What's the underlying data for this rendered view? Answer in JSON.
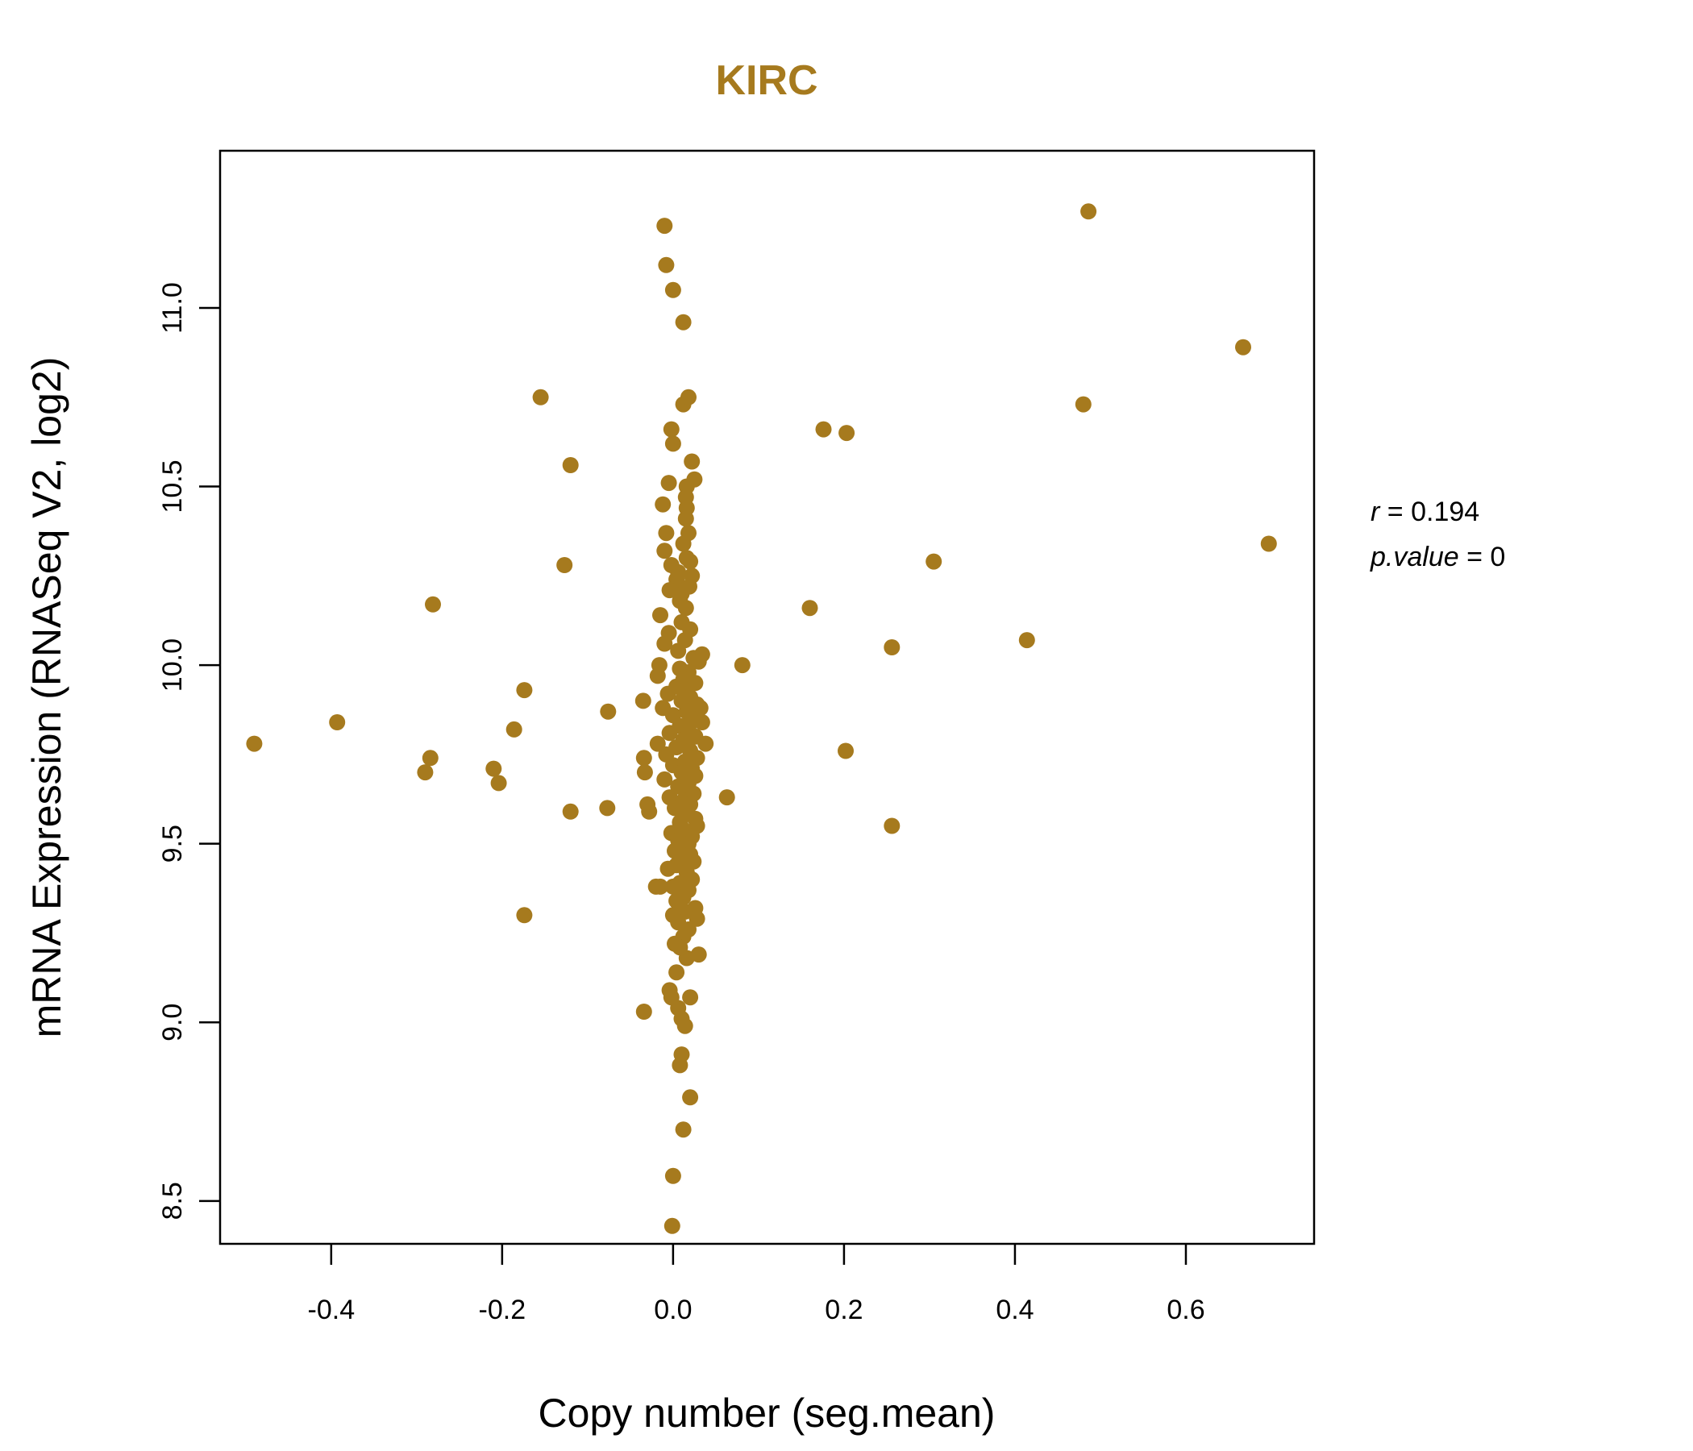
{
  "chart_data": {
    "type": "scatter",
    "title": "KIRC",
    "xlabel": "Copy number (seg.mean)",
    "ylabel": "mRNA Expression (RNASeq V2, log2)",
    "xlim": [
      -0.53,
      0.75
    ],
    "ylim": [
      8.38,
      11.44
    ],
    "x_ticks": [
      -0.4,
      -0.2,
      0.0,
      0.2,
      0.4,
      0.6
    ],
    "x_tick_labels": [
      "-0.4",
      "-0.2",
      "0.0",
      "0.2",
      "0.4",
      "0.6"
    ],
    "y_ticks": [
      8.5,
      9.0,
      9.5,
      10.0,
      10.5,
      11.0
    ],
    "y_tick_labels": [
      "8.5",
      "9.0",
      "9.5",
      "10.0",
      "10.5",
      "11.0"
    ],
    "point_color": "#A67A1E",
    "stats": {
      "r_label": "r",
      "r_value": "0.194",
      "p_label": "p.value",
      "p_value": "0"
    },
    "points": [
      [
        -0.49,
        9.78
      ],
      [
        -0.393,
        9.84
      ],
      [
        -0.29,
        9.7
      ],
      [
        -0.284,
        9.74
      ],
      [
        -0.281,
        10.17
      ],
      [
        -0.21,
        9.71
      ],
      [
        -0.204,
        9.67
      ],
      [
        -0.186,
        9.82
      ],
      [
        -0.174,
        9.93
      ],
      [
        -0.174,
        9.3
      ],
      [
        -0.155,
        10.75
      ],
      [
        -0.127,
        10.28
      ],
      [
        -0.12,
        10.56
      ],
      [
        -0.12,
        9.59
      ],
      [
        -0.076,
        9.87
      ],
      [
        -0.077,
        9.6
      ],
      [
        -0.035,
        9.9
      ],
      [
        -0.034,
        9.74
      ],
      [
        -0.033,
        9.7
      ],
      [
        -0.03,
        9.61
      ],
      [
        -0.028,
        9.59
      ],
      [
        -0.034,
        9.03
      ],
      [
        -0.02,
        9.38
      ],
      [
        -0.015,
        9.38
      ],
      [
        -0.018,
        9.78
      ],
      [
        -0.012,
        10.45
      ],
      [
        -0.01,
        10.32
      ],
      [
        -0.008,
        10.37
      ],
      [
        -0.01,
        11.23
      ],
      [
        -0.008,
        11.12
      ],
      [
        0.0,
        11.05
      ],
      [
        0.012,
        10.96
      ],
      [
        0.012,
        10.73
      ],
      [
        0.018,
        10.75
      ],
      [
        -0.002,
        10.66
      ],
      [
        0.0,
        10.62
      ],
      [
        0.022,
        10.57
      ],
      [
        -0.005,
        10.51
      ],
      [
        0.025,
        10.52
      ],
      [
        0.016,
        10.5
      ],
      [
        0.015,
        10.47
      ],
      [
        0.016,
        10.44
      ],
      [
        0.015,
        10.41
      ],
      [
        0.018,
        10.37
      ],
      [
        0.012,
        10.34
      ],
      [
        0.016,
        10.3
      ],
      [
        0.02,
        10.29
      ],
      [
        0.006,
        10.26
      ],
      [
        0.022,
        10.25
      ],
      [
        0.019,
        10.22
      ],
      [
        0.01,
        10.2
      ],
      [
        -0.002,
        10.28
      ],
      [
        0.004,
        10.24
      ],
      [
        -0.004,
        10.21
      ],
      [
        0.008,
        10.18
      ],
      [
        0.015,
        10.16
      ],
      [
        -0.015,
        10.14
      ],
      [
        0.01,
        10.12
      ],
      [
        0.02,
        10.1
      ],
      [
        -0.005,
        10.09
      ],
      [
        0.014,
        10.07
      ],
      [
        -0.01,
        10.06
      ],
      [
        0.006,
        10.04
      ],
      [
        0.024,
        10.02
      ],
      [
        0.034,
        10.03
      ],
      [
        0.03,
        10.01
      ],
      [
        -0.016,
        10.0
      ],
      [
        0.008,
        9.99
      ],
      [
        0.018,
        9.98
      ],
      [
        -0.018,
        9.97
      ],
      [
        0.012,
        9.96
      ],
      [
        0.026,
        9.95
      ],
      [
        0.004,
        9.94
      ],
      [
        0.014,
        9.93
      ],
      [
        -0.006,
        9.92
      ],
      [
        0.02,
        9.91
      ],
      [
        0.01,
        9.9
      ],
      [
        0.028,
        9.89
      ],
      [
        -0.012,
        9.88
      ],
      [
        0.032,
        9.88
      ],
      [
        0.016,
        9.87
      ],
      [
        0.0,
        9.86
      ],
      [
        0.022,
        9.85
      ],
      [
        0.034,
        9.84
      ],
      [
        0.008,
        9.83
      ],
      [
        0.018,
        9.82
      ],
      [
        -0.004,
        9.81
      ],
      [
        0.026,
        9.8
      ],
      [
        0.012,
        9.79
      ],
      [
        0.038,
        9.78
      ],
      [
        0.004,
        9.77
      ],
      [
        0.02,
        9.76
      ],
      [
        -0.008,
        9.75
      ],
      [
        0.028,
        9.74
      ],
      [
        0.014,
        9.73
      ],
      [
        0.0,
        9.72
      ],
      [
        0.022,
        9.71
      ],
      [
        0.01,
        9.7
      ],
      [
        0.026,
        9.69
      ],
      [
        -0.01,
        9.68
      ],
      [
        0.018,
        9.67
      ],
      [
        0.006,
        9.66
      ],
      [
        0.014,
        9.65
      ],
      [
        0.024,
        9.64
      ],
      [
        -0.004,
        9.63
      ],
      [
        0.012,
        9.62
      ],
      [
        0.02,
        9.61
      ],
      [
        0.002,
        9.6
      ],
      [
        0.016,
        9.59
      ],
      [
        0.026,
        9.57
      ],
      [
        0.008,
        9.56
      ],
      [
        0.028,
        9.55
      ],
      [
        0.012,
        9.54
      ],
      [
        -0.002,
        9.53
      ],
      [
        0.022,
        9.52
      ],
      [
        0.006,
        9.51
      ],
      [
        0.018,
        9.5
      ],
      [
        0.014,
        9.49
      ],
      [
        0.002,
        9.48
      ],
      [
        0.02,
        9.47
      ],
      [
        0.01,
        9.46
      ],
      [
        0.024,
        9.45
      ],
      [
        0.004,
        9.44
      ],
      [
        -0.006,
        9.43
      ],
      [
        0.016,
        9.42
      ],
      [
        0.022,
        9.4
      ],
      [
        0.008,
        9.39
      ],
      [
        0.0,
        9.38
      ],
      [
        0.018,
        9.37
      ],
      [
        0.012,
        9.35
      ],
      [
        0.004,
        9.34
      ],
      [
        0.026,
        9.32
      ],
      [
        0.014,
        9.31
      ],
      [
        0.0,
        9.3
      ],
      [
        0.028,
        9.29
      ],
      [
        0.006,
        9.28
      ],
      [
        0.018,
        9.26
      ],
      [
        0.012,
        9.24
      ],
      [
        0.002,
        9.22
      ],
      [
        0.03,
        9.19
      ],
      [
        0.016,
        9.18
      ],
      [
        0.008,
        9.21
      ],
      [
        0.004,
        9.14
      ],
      [
        -0.004,
        9.09
      ],
      [
        0.02,
        9.07
      ],
      [
        -0.002,
        9.07
      ],
      [
        0.006,
        9.04
      ],
      [
        0.01,
        9.01
      ],
      [
        0.014,
        8.99
      ],
      [
        0.01,
        8.91
      ],
      [
        0.008,
        8.88
      ],
      [
        0.02,
        8.79
      ],
      [
        0.012,
        8.7
      ],
      [
        0.0,
        8.57
      ],
      [
        -0.001,
        8.43
      ],
      [
        0.081,
        10.0
      ],
      [
        0.063,
        9.63
      ],
      [
        0.16,
        10.16
      ],
      [
        0.176,
        10.66
      ],
      [
        0.203,
        10.65
      ],
      [
        0.202,
        9.76
      ],
      [
        0.256,
        10.05
      ],
      [
        0.256,
        9.55
      ],
      [
        0.305,
        10.29
      ],
      [
        0.414,
        10.07
      ],
      [
        0.48,
        10.73
      ],
      [
        0.486,
        11.27
      ],
      [
        0.667,
        10.89
      ],
      [
        0.697,
        10.34
      ]
    ]
  }
}
